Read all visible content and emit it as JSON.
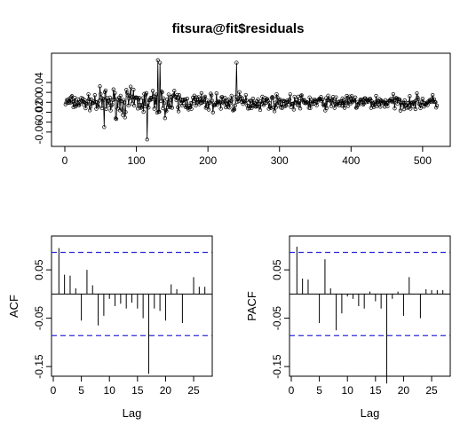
{
  "title": "fitsura@fit$residuals",
  "chart_data": [
    {
      "type": "line",
      "title": "fitsura@fit$residuals",
      "xlabel": "",
      "ylabel": "",
      "x_ticks": [
        0,
        100,
        200,
        300,
        400,
        500
      ],
      "y_ticks": [
        -0.06,
        -0.04,
        -0.02,
        0.0,
        0.02,
        0.04
      ],
      "y_tick_labels": [
        "-0.06",
        "",
        "-0.02",
        "0.00",
        "",
        "0.04"
      ],
      "xlim": [
        0,
        520
      ],
      "ylim": [
        -0.08,
        0.09
      ],
      "n_points": 520,
      "markers": "open-circles",
      "notable_points": [
        {
          "x": 55,
          "y": -0.05
        },
        {
          "x": 115,
          "y": -0.075
        },
        {
          "x": 130,
          "y": 0.085
        },
        {
          "x": 133,
          "y": 0.08
        },
        {
          "x": 240,
          "y": 0.08
        }
      ]
    },
    {
      "type": "bar",
      "subtype": "acf",
      "xlabel": "Lag",
      "ylabel": "ACF",
      "x_ticks": [
        0,
        5,
        10,
        15,
        20,
        25
      ],
      "y_ticks": [
        -0.15,
        -0.05,
        0.05
      ],
      "y_tick_labels": [
        "-0.15",
        "-0.05",
        "0.05"
      ],
      "xlim": [
        0,
        28
      ],
      "ylim": [
        -0.17,
        0.12
      ],
      "confidence_band": [
        -0.086,
        0.086
      ],
      "lags": [
        1,
        2,
        3,
        4,
        5,
        6,
        7,
        8,
        9,
        10,
        11,
        12,
        13,
        14,
        15,
        16,
        17,
        18,
        19,
        20,
        21,
        22,
        23,
        24,
        25,
        26,
        27
      ],
      "values": [
        0.095,
        0.04,
        0.038,
        0.012,
        -0.055,
        0.05,
        0.018,
        -0.065,
        -0.045,
        -0.01,
        -0.025,
        -0.02,
        -0.03,
        -0.018,
        -0.03,
        -0.05,
        -0.165,
        -0.03,
        -0.035,
        -0.055,
        0.02,
        0.01,
        -0.06,
        0.0,
        0.035,
        0.015,
        0.015
      ]
    },
    {
      "type": "bar",
      "subtype": "pacf",
      "xlabel": "Lag",
      "ylabel": "PACF",
      "x_ticks": [
        0,
        5,
        10,
        15,
        20,
        25
      ],
      "y_ticks": [
        -0.15,
        -0.05,
        0.05
      ],
      "y_tick_labels": [
        "-0.15",
        "-0.05",
        "0.05"
      ],
      "xlim": [
        0,
        28
      ],
      "ylim": [
        -0.17,
        0.12
      ],
      "confidence_band": [
        -0.086,
        0.086
      ],
      "lags": [
        1,
        2,
        3,
        4,
        5,
        6,
        7,
        8,
        9,
        10,
        11,
        12,
        13,
        14,
        15,
        16,
        17,
        18,
        19,
        20,
        21,
        22,
        23,
        24,
        25,
        26,
        27
      ],
      "values": [
        0.098,
        0.032,
        0.03,
        0.0,
        -0.06,
        0.072,
        0.012,
        -0.075,
        -0.04,
        -0.005,
        -0.01,
        -0.025,
        -0.03,
        0.005,
        -0.015,
        -0.03,
        -0.185,
        -0.01,
        0.005,
        -0.045,
        0.035,
        0.0,
        -0.05,
        0.01,
        0.008,
        0.008,
        0.008
      ]
    }
  ]
}
